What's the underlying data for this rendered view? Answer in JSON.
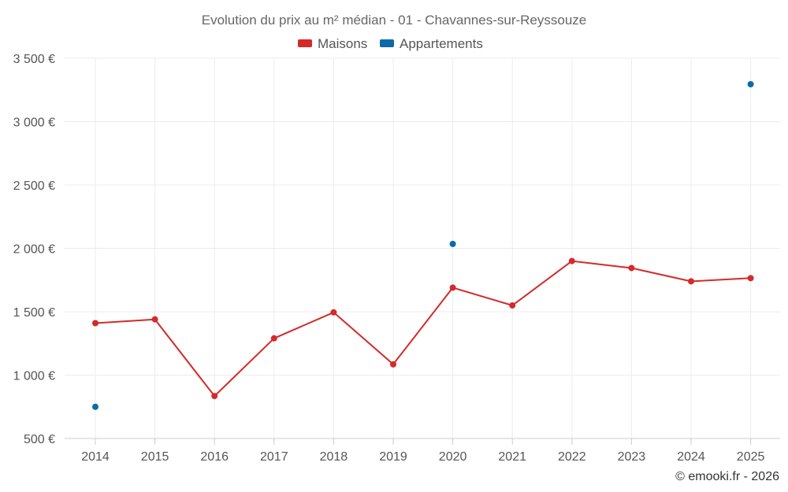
{
  "chart_data": {
    "type": "line",
    "title": "Evolution du prix au m² médian - 01 - Chavannes-sur-Reyssouze",
    "categories": [
      "2014",
      "2015",
      "2016",
      "2017",
      "2018",
      "2019",
      "2020",
      "2021",
      "2022",
      "2023",
      "2024",
      "2025"
    ],
    "series": [
      {
        "name": "Maisons",
        "color": "#d42a2a",
        "values": [
          1410,
          1440,
          835,
          1290,
          1495,
          1085,
          1690,
          1550,
          1900,
          1845,
          1740,
          1765
        ]
      },
      {
        "name": "Appartements",
        "color": "#0d6aa8",
        "values": [
          750,
          null,
          null,
          null,
          null,
          null,
          2035,
          null,
          null,
          null,
          null,
          3295
        ]
      }
    ],
    "y_ticks": [
      500,
      1000,
      1500,
      2000,
      2500,
      3000,
      3500
    ],
    "y_tick_labels": [
      "500 €",
      "1 000 €",
      "1 500 €",
      "2 000 €",
      "2 500 €",
      "3 000 €",
      "3 500 €"
    ],
    "ylim": [
      500,
      3500
    ],
    "xlabel": "",
    "ylabel": "",
    "grid": true,
    "legend_position": "top-center"
  },
  "credits": "© emooki.fr - 2026"
}
